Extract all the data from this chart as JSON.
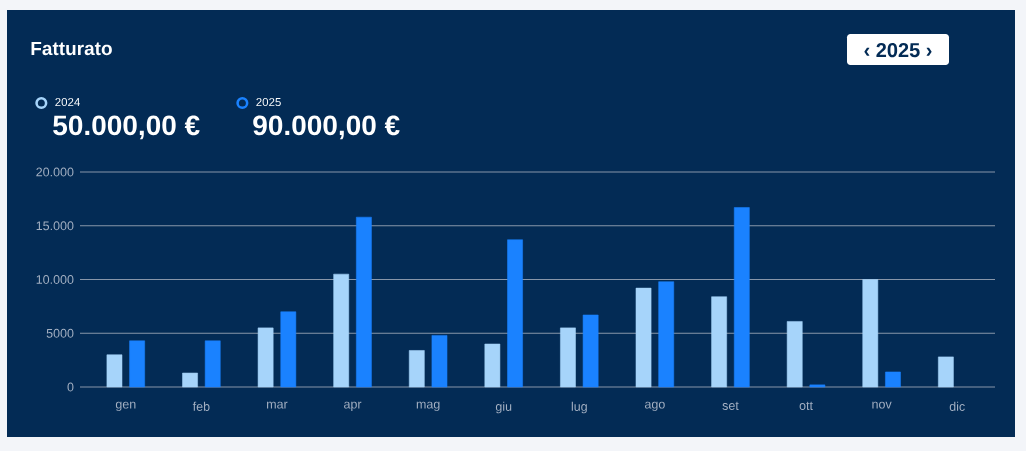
{
  "chart_data": {
    "type": "bar",
    "title": "Fatturato",
    "categories": [
      "gen",
      "feb",
      "mar",
      "apr",
      "mag",
      "giu",
      "lug",
      "ago",
      "set",
      "ott",
      "nov",
      "dic"
    ],
    "series": [
      {
        "name": "2024",
        "color": "#a6d4fa",
        "values": [
          3000,
          1300,
          5500,
          10500,
          3400,
          4000,
          5500,
          9200,
          8400,
          6100,
          10000,
          2800
        ]
      },
      {
        "name": "2025",
        "color": "#1a82ff",
        "values": [
          4300,
          4300,
          7000,
          15800,
          4800,
          13700,
          6700,
          9800,
          16700,
          200,
          1400,
          null
        ]
      }
    ],
    "ylim": [
      0,
      20000
    ],
    "yticks": [
      0,
      5000,
      {
        "value": 10000,
        "label": "10.000"
      },
      {
        "value": 15000,
        "label": "15.000"
      },
      {
        "value": 20000,
        "label": "20.000"
      }
    ],
    "grid": "y",
    "legend": "top left",
    "annotations": [
      "50.000,00 €",
      "90.000,00 €",
      "‹ 2025 ›"
    ]
  }
}
